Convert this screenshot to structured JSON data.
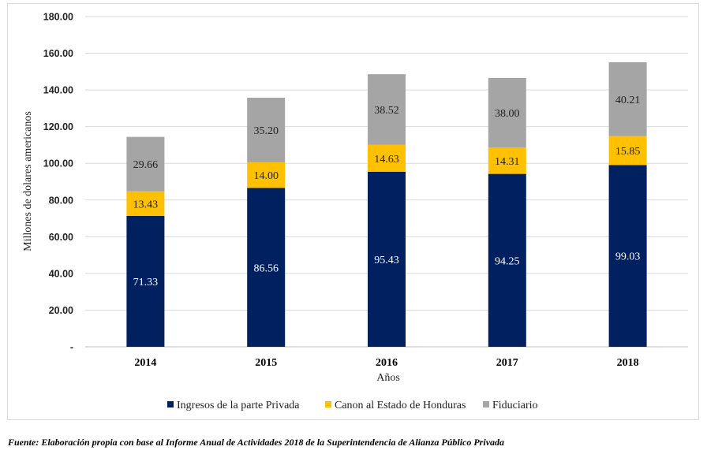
{
  "chart_data": {
    "type": "bar",
    "stacked": true,
    "categories": [
      "2014",
      "2015",
      "2016",
      "2017",
      "2018"
    ],
    "series": [
      {
        "name": "Ingresos de la parte Privada",
        "values": [
          71.33,
          86.56,
          95.43,
          94.25,
          99.03
        ],
        "color": "#002060",
        "label_color": "#ffffff",
        "labels": [
          "71.33",
          "86.56",
          "95.43",
          "94.25",
          "99.03"
        ]
      },
      {
        "name": "Canon al Estado de Honduras",
        "values": [
          13.43,
          14.0,
          14.63,
          14.31,
          15.85
        ],
        "color": "#ffc000",
        "label_color": "#222222",
        "labels": [
          "13.43",
          "14.00",
          "14.63",
          "14.31",
          "15.85"
        ]
      },
      {
        "name": "Fiduciario",
        "values": [
          29.66,
          35.2,
          38.52,
          38.0,
          40.21
        ],
        "color": "#a5a5a5",
        "label_color": "#222222",
        "labels": [
          "29.66",
          "35.20",
          "38.52",
          "38.00",
          "40.21"
        ]
      }
    ],
    "title": "",
    "xlabel": "Años",
    "ylabel": "Millones  de dolares  americanos",
    "ylim": [
      0,
      180
    ],
    "yticks": [
      0,
      20,
      40,
      60,
      80,
      100,
      120,
      140,
      160,
      180
    ],
    "ytick_labels": [
      "-",
      "20.00",
      "40.00",
      "60.00",
      "80.00",
      "100.00",
      "120.00",
      "140.00",
      "160.00",
      "180.00"
    ],
    "grid": true,
    "legend_position": "bottom",
    "gridline_color": "#d9d9d9",
    "axis_color": "#bfbfbf"
  },
  "source_note": "Fuente: Elaboración propia con base al Informe Anual  de Actividades 2018 de la Superintendencia de Alianza Público Privada"
}
